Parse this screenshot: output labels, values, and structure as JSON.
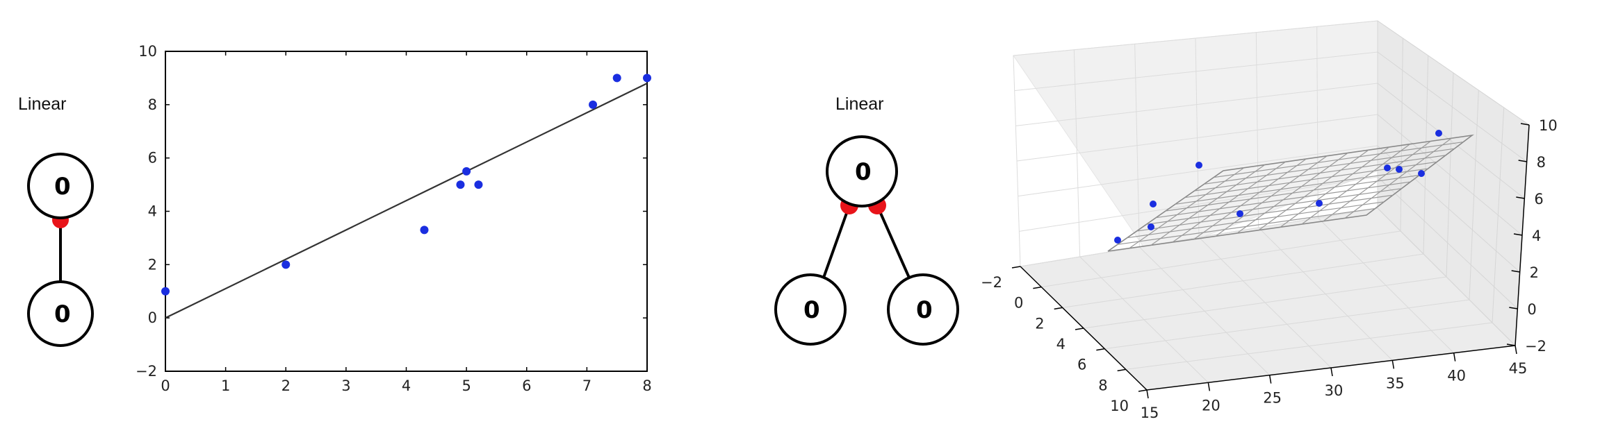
{
  "panel1": {
    "network": {
      "label": "Linear",
      "top_node": "0",
      "bottom_node": "0"
    },
    "chart_data": {
      "type": "scatter",
      "title": "",
      "xlabel": "",
      "ylabel": "",
      "xlim": [
        0,
        8
      ],
      "ylim": [
        -2,
        10
      ],
      "x_ticks": [
        "0",
        "1",
        "2",
        "3",
        "4",
        "5",
        "6",
        "7",
        "8"
      ],
      "y_ticks": [
        "-2",
        "0",
        "2",
        "4",
        "6",
        "8",
        "10"
      ],
      "points": [
        {
          "x": 0,
          "y": 1
        },
        {
          "x": 2,
          "y": 2
        },
        {
          "x": 4.3,
          "y": 3.3
        },
        {
          "x": 4.9,
          "y": 5
        },
        {
          "x": 5,
          "y": 5.5
        },
        {
          "x": 5.2,
          "y": 5
        },
        {
          "x": 7.1,
          "y": 8
        },
        {
          "x": 7.5,
          "y": 9
        },
        {
          "x": 8,
          "y": 9
        }
      ],
      "fit_line": {
        "x": [
          0,
          8
        ],
        "y": [
          0,
          8.8
        ]
      },
      "point_color": "#1a2ee0",
      "line_color": "#333333"
    }
  },
  "panel2": {
    "network": {
      "label": "Linear",
      "top_node": "0",
      "left_node": "0",
      "right_node": "0"
    },
    "chart_data": {
      "type": "scatter",
      "projection": "3d",
      "title": "",
      "x_ticks": [
        "-2",
        "0",
        "2",
        "4",
        "6",
        "8",
        "10"
      ],
      "y_ticks": [
        "15",
        "20",
        "25",
        "30",
        "35",
        "40",
        "45"
      ],
      "z_ticks": [
        "-2",
        "0",
        "2",
        "4",
        "6",
        "8",
        "10"
      ],
      "xlim": [
        -2,
        10
      ],
      "ylim": [
        15,
        45
      ],
      "zlim": [
        -2,
        10
      ],
      "surface": "fitted plane (wireframe)",
      "point_color": "#1a2ee0"
    }
  }
}
